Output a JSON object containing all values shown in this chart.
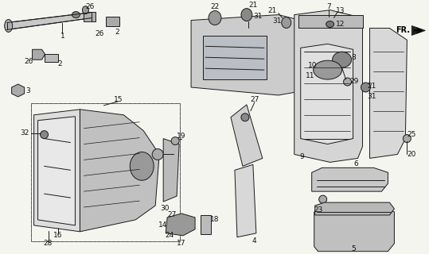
{
  "bg_color": "#f5f5f0",
  "fig_width": 5.39,
  "fig_height": 3.2,
  "dpi": 100,
  "lc": "#1a1a1a",
  "lw": 0.7,
  "fs": 6.5,
  "fc": "#111111"
}
